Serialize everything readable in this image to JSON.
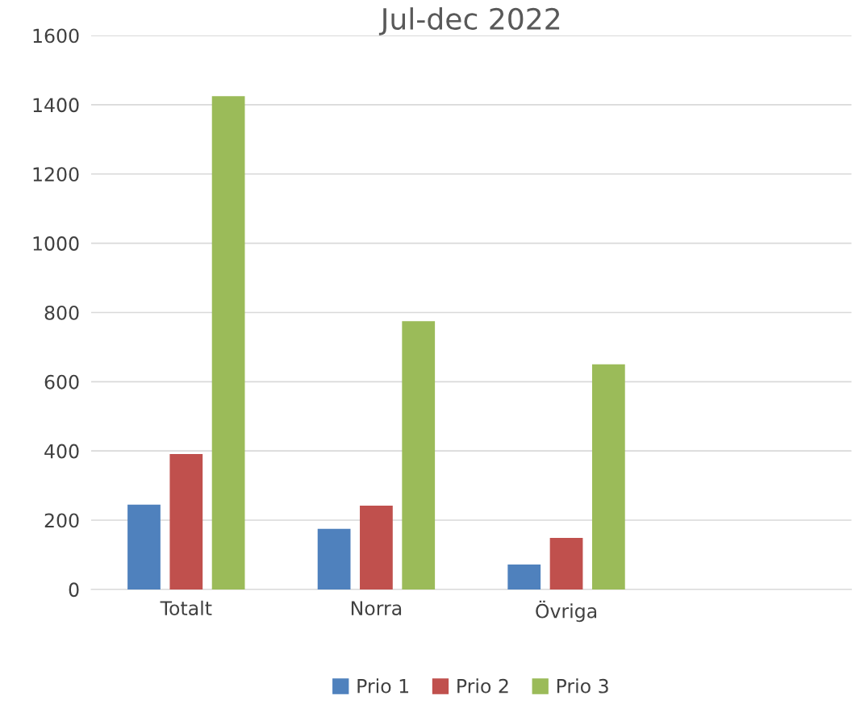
{
  "chart_data": {
    "type": "bar",
    "title": "Jul-dec 2022",
    "categories": [
      "Totalt",
      "Norra",
      "Övriga",
      null
    ],
    "series": [
      {
        "name": "Prio 1",
        "color": "#4f81bd",
        "values": [
          245,
          175,
          72,
          null
        ]
      },
      {
        "name": "Prio 2",
        "color": "#c0504d",
        "values": [
          391,
          242,
          149,
          null
        ]
      },
      {
        "name": "Prio 3",
        "color": "#9bbb59",
        "values": [
          1425,
          775,
          650,
          null
        ]
      }
    ],
    "ylim": [
      0,
      1600
    ],
    "yticks": [
      0,
      200,
      400,
      600,
      800,
      1000,
      1200,
      1400,
      1600
    ],
    "grid": "y",
    "legend": "bottom"
  }
}
